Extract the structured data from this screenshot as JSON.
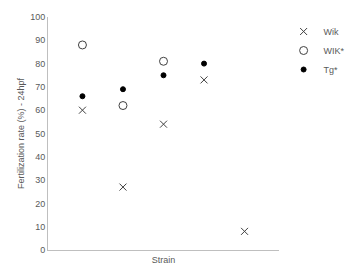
{
  "chart_data": {
    "type": "scatter",
    "x_label": "Strain",
    "y_label": "Fertilization rate (%) - 24hpf",
    "categories": [
      null,
      null,
      null,
      null,
      null
    ],
    "series": [
      {
        "name": "Wik",
        "color": "#404040",
        "marker": "x",
        "values": [
          60,
          27,
          54,
          73,
          8
        ]
      },
      {
        "name": "WIK*",
        "color": "#404040",
        "marker": "circle-open",
        "values": [
          88,
          62,
          81,
          null,
          null
        ]
      },
      {
        "name": "Tg*",
        "color": "#000000",
        "marker": "circle",
        "values": [
          66,
          69,
          75,
          80,
          null
        ]
      }
    ],
    "ylim": [
      0,
      100
    ],
    "yticks": [
      0,
      10,
      20,
      30,
      40,
      50,
      60,
      70,
      80,
      90,
      100
    ],
    "grid": false,
    "legend": "top right",
    "tick_labels": "y"
  }
}
